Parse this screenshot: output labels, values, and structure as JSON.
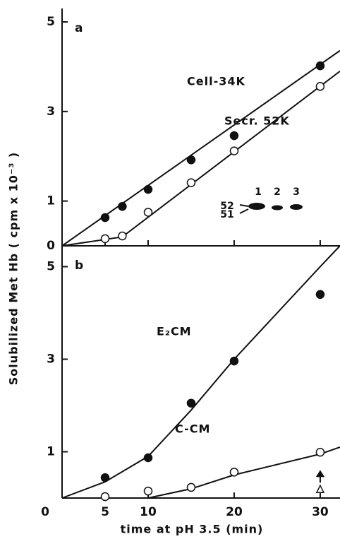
{
  "chart_data": [
    {
      "type": "line",
      "panel_label": "a",
      "ylabel": "Solubilized    Met Hb    ( cpm x 10⁻³ )",
      "xlim": [
        0,
        32.3
      ],
      "ylim": [
        0,
        5.3
      ],
      "yticks": [
        0,
        1,
        3,
        5
      ],
      "series": [
        {
          "name": "Cell-34K",
          "color": "#111111",
          "marker": "filled",
          "x": [
            5,
            7,
            10,
            15,
            20,
            30
          ],
          "values": [
            0.63,
            0.88,
            1.26,
            1.92,
            2.46,
            4.02
          ],
          "fit_x": [
            0,
            32.3
          ],
          "fit_y": [
            0,
            4.36
          ]
        },
        {
          "name": "Secr. 52K",
          "color": "#111111",
          "marker": "open",
          "x": [
            5,
            7,
            10,
            15,
            20,
            30
          ],
          "values": [
            0.16,
            0.22,
            0.75,
            1.41,
            2.12,
            3.56
          ],
          "fit_x": [
            0,
            7,
            32.3
          ],
          "fit_y": [
            0,
            0.2,
            3.9
          ]
        }
      ],
      "inset_labels": [
        "52",
        "51",
        "1",
        "2",
        "3"
      ]
    },
    {
      "type": "line",
      "panel_label": "b",
      "xlabel": "time   at   pH 3.5  (min)",
      "xlim": [
        0,
        32.3
      ],
      "ylim": [
        0,
        5.45
      ],
      "yticks": [
        1,
        3,
        5
      ],
      "xticks": [
        0,
        5,
        10,
        20,
        30
      ],
      "series": [
        {
          "name": "E₂CM",
          "color": "#111111",
          "marker": "filled",
          "x": [
            5,
            10,
            15,
            20,
            30
          ],
          "values": [
            0.44,
            0.87,
            2.05,
            2.96,
            4.4
          ],
          "fit_x": [
            0,
            5,
            10,
            15,
            20,
            30,
            32.3
          ],
          "fit_y": [
            0,
            0.35,
            0.9,
            1.9,
            3.0,
            5.0,
            5.45
          ]
        },
        {
          "name": "C-CM",
          "color": "#111111",
          "marker": "open",
          "x": [
            5,
            10,
            15,
            20,
            30
          ],
          "values": [
            0.03,
            0.15,
            0.23,
            0.56,
            0.99
          ],
          "fit_x": [
            0,
            10,
            15,
            20,
            30,
            32.3
          ],
          "fit_y": [
            0,
            0,
            0.2,
            0.5,
            0.95,
            1.1
          ]
        },
        {
          "color": "#111111",
          "marker": "triangle",
          "x": [
            30
          ],
          "values": [
            0.18
          ]
        }
      ]
    }
  ]
}
